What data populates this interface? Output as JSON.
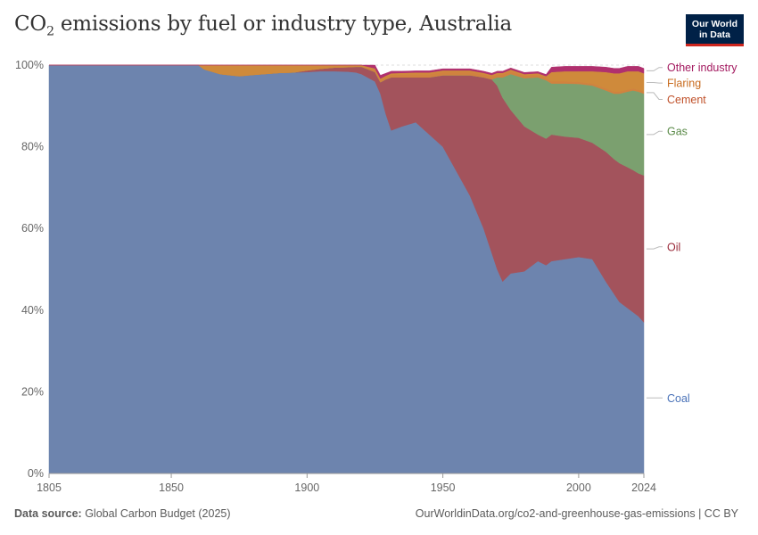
{
  "header": {
    "title_prefix": "CO",
    "title_sub": "2",
    "title_suffix": " emissions by fuel or industry type, Australia",
    "logo_line1": "Our World",
    "logo_line2": "in Data"
  },
  "footer": {
    "source_label": "Data source:",
    "source_value": " Global Carbon Budget (2025)",
    "url": "OurWorldinData.org/co2-and-greenhouse-gas-emissions | CC BY"
  },
  "colors": {
    "coal": "#6d84ae",
    "oil": "#a3535c",
    "gas": "#7ba06f",
    "cement": "#d0823f",
    "flaring": "#cf8a3b",
    "other": "#b0306e",
    "coal_label": "#4a72b8",
    "oil_label": "#9a2a3a",
    "gas_label": "#5a8a48",
    "cement_label": "#c0512a",
    "flaring_label": "#c86b1e",
    "other_label": "#a3195f"
  },
  "chart_data": {
    "type": "area",
    "stacked": true,
    "title": "CO2 emissions by fuel or industry type, Australia",
    "xlabel": "",
    "ylabel": "",
    "xlim": [
      1805,
      2024
    ],
    "ylim": [
      0,
      100
    ],
    "y_unit": "%",
    "x_ticks": [
      1805,
      1850,
      1900,
      1950,
      2000,
      2024
    ],
    "y_ticks": [
      0,
      20,
      40,
      60,
      80,
      100
    ],
    "y_tick_labels": [
      "0%",
      "20%",
      "40%",
      "60%",
      "80%",
      "100%"
    ],
    "legend_position": "right",
    "x": [
      1805,
      1855,
      1860,
      1862,
      1868,
      1875,
      1880,
      1890,
      1895,
      1900,
      1905,
      1910,
      1915,
      1918,
      1920,
      1925,
      1927,
      1929,
      1931,
      1935,
      1940,
      1945,
      1950,
      1955,
      1960,
      1965,
      1968,
      1970,
      1972,
      1975,
      1980,
      1985,
      1988,
      1990,
      1995,
      2000,
      2005,
      2010,
      2013,
      2015,
      2018,
      2020,
      2022,
      2024
    ],
    "series": [
      {
        "name": "Coal",
        "values": [
          100,
          100,
          100,
          99,
          97.8,
          97.3,
          97.6,
          98.1,
          98.2,
          98.3,
          98.5,
          98.5,
          98.4,
          98.2,
          97.8,
          96,
          93,
          88,
          84,
          85,
          86,
          83,
          80,
          74,
          68,
          60,
          54,
          50,
          47,
          49,
          49.5,
          52,
          51,
          52,
          52.5,
          53,
          52.5,
          47,
          44,
          42,
          40.5,
          39.5,
          38.5,
          37
        ]
      },
      {
        "name": "Oil",
        "values": [
          0,
          0,
          0,
          0,
          0,
          0,
          0,
          0,
          0,
          0.4,
          0.6,
          0.9,
          1.1,
          1.4,
          1.8,
          2.3,
          2.8,
          8.5,
          13,
          12,
          11,
          14,
          17.5,
          23.5,
          29.5,
          37,
          42.5,
          45,
          45,
          40,
          35.5,
          31,
          31,
          31,
          30,
          29.2,
          28.5,
          31.8,
          33,
          34,
          34.5,
          34.8,
          35,
          36
        ]
      },
      {
        "name": "Gas",
        "values": [
          0,
          0,
          0,
          0,
          0,
          0,
          0,
          0,
          0,
          0,
          0,
          0,
          0,
          0,
          0,
          0,
          0,
          0,
          0,
          0,
          0,
          0,
          0,
          0,
          0,
          0,
          0,
          2,
          5,
          8.8,
          11.8,
          14,
          14.3,
          12.5,
          13,
          13.2,
          14,
          15,
          16,
          17,
          18.5,
          19.5,
          20,
          20
        ]
      },
      {
        "name": "Cement",
        "values": [
          0,
          0,
          0,
          0,
          0,
          0,
          0,
          0,
          0,
          0,
          0,
          0,
          0,
          0,
          0,
          0.5,
          0.5,
          0.5,
          0.6,
          0.7,
          0.8,
          0.8,
          0.8,
          0.8,
          0.8,
          0.7,
          0.7,
          0.7,
          0.7,
          0.7,
          0.6,
          0.6,
          0.6,
          0.5,
          0.5,
          0.5,
          0.5,
          0.5,
          0.5,
          0.5,
          0.5,
          0.5,
          0.5,
          0.5
        ]
      },
      {
        "name": "Flaring",
        "values": [
          0,
          0,
          0,
          1,
          2.2,
          2.7,
          2.4,
          1.9,
          1.8,
          1.3,
          0.9,
          0.6,
          0.5,
          0.4,
          0.4,
          0.4,
          0.4,
          0.4,
          0.4,
          0.4,
          0.4,
          0.4,
          0.4,
          0.4,
          0.4,
          0.4,
          0.4,
          0.4,
          0.4,
          0.4,
          0.4,
          0.4,
          0.4,
          2.3,
          2.5,
          2.6,
          3,
          4,
          4.5,
          4.5,
          4.5,
          4.2,
          4.5,
          4.5
        ]
      },
      {
        "name": "Other industry",
        "values": [
          0,
          0,
          0,
          0,
          0,
          0,
          0,
          0,
          0,
          0,
          0,
          0,
          0,
          0,
          0,
          0.8,
          0.8,
          0.6,
          0.5,
          0.4,
          0.4,
          0.4,
          0.4,
          0.4,
          0.4,
          0.4,
          0.4,
          0.4,
          0.4,
          0.4,
          0.4,
          0.4,
          0.4,
          1.2,
          1.2,
          1.2,
          1.2,
          1.2,
          1.2,
          1.2,
          1.2,
          1.2,
          1.2,
          1.2
        ]
      }
    ],
    "labels": [
      {
        "series": "Other industry",
        "text": "Other industry",
        "value": 99.4
      },
      {
        "series": "Flaring",
        "text": "Flaring",
        "value": 95.6
      },
      {
        "series": "Cement",
        "text": "Cement",
        "value": 91.6
      },
      {
        "series": "Gas",
        "text": "Gas",
        "value": 83.8
      },
      {
        "series": "Oil",
        "text": "Oil",
        "value": 55.5
      },
      {
        "series": "Coal",
        "text": "Coal",
        "value": 18.5
      }
    ]
  }
}
